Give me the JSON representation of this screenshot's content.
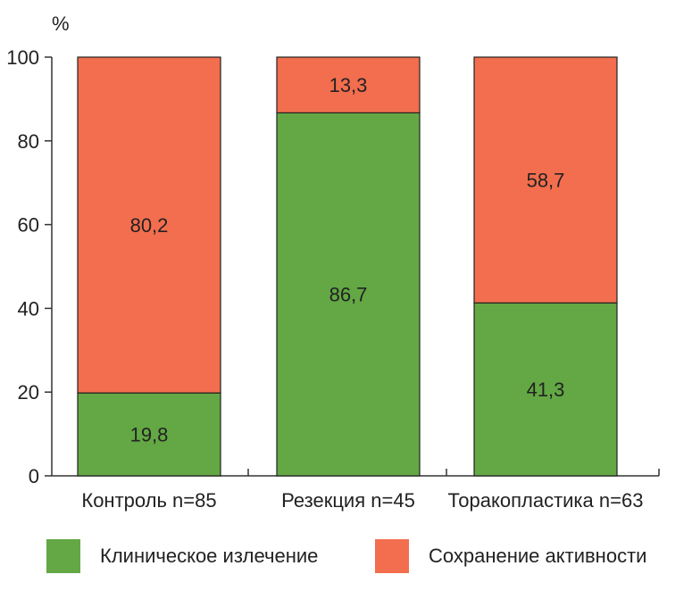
{
  "chart_data": {
    "type": "bar",
    "stacked": true,
    "ylabel": "%",
    "ylim": [
      0,
      100
    ],
    "yticks": [
      0,
      20,
      40,
      60,
      80,
      100
    ],
    "categories": [
      "Контроль n=85",
      "Резекция n=45",
      "Торакопластика n=63"
    ],
    "series": [
      {
        "name": "Клиническое излечение",
        "color": "#63a844",
        "values": [
          19.8,
          86.7,
          41.3
        ],
        "labels": [
          "19,8",
          "86,7",
          "41,3"
        ]
      },
      {
        "name": "Сохранение активности",
        "color": "#f26e4e",
        "values": [
          80.2,
          13.3,
          58.7
        ],
        "labels": [
          "80,2",
          "13,3",
          "58,7"
        ]
      }
    ],
    "legend_position": "bottom",
    "grid": false
  }
}
